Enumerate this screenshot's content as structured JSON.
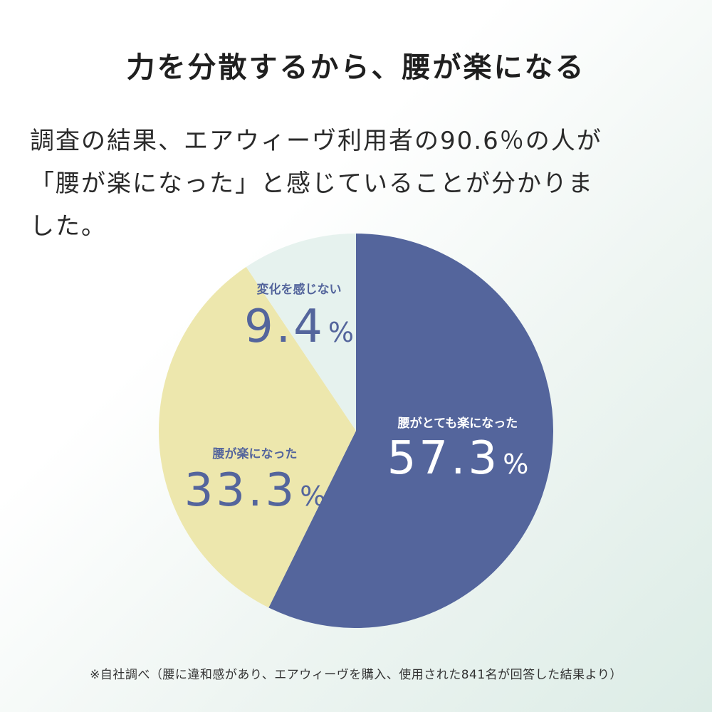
{
  "title": "力を分散するから、腰が楽になる",
  "description": [
    "調査の結果、エアウィーヴ利用者の90.6％の人が",
    "「腰が楽になった」と感じていることが分かりま",
    "した。"
  ],
  "chart_data": {
    "type": "pie",
    "unit": "%",
    "slices": [
      {
        "label": "腰がとても楽になった",
        "value": 57.3,
        "display": "57.3",
        "color": "#54659c",
        "text_color": "#ffffff"
      },
      {
        "label": "腰が楽になった",
        "value": 33.3,
        "display": "33.3",
        "color": "#ede7ad",
        "text_color": "#54659c"
      },
      {
        "label": "変化を感じない",
        "value": 9.4,
        "display": "9.4",
        "color": "#e6f2ee",
        "text_color": "#54659c"
      }
    ]
  },
  "footnote": "※自社調べ（腰に違和感があり、エアウィーヴを購入、使用された841名が回答した結果より）"
}
